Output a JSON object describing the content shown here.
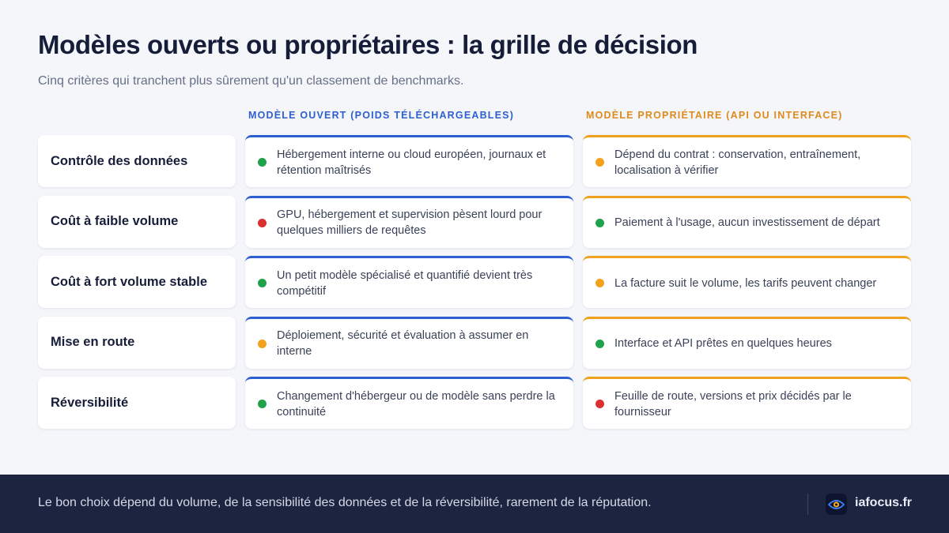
{
  "header": {
    "title": "Modèles ouverts ou propriétaires : la grille de décision",
    "subtitle": "Cinq critères qui tranchent plus sûrement qu'un classement de benchmarks."
  },
  "columns": {
    "open": "MODÈLE OUVERT (POIDS TÉLÉCHARGEABLES)",
    "proprietary": "MODÈLE PROPRIÉTAIRE (API OU INTERFACE)"
  },
  "colors": {
    "open_accent": "#2d5fd0",
    "proprietary_accent": "#f0a21e",
    "green": "#1fa34a",
    "orange": "#f2a31b",
    "red": "#dc3030"
  },
  "rows": [
    {
      "criterion": "Contrôle des données",
      "open": {
        "status": "green",
        "text": "Hébergement interne ou cloud européen, journaux et rétention maîtrisés"
      },
      "proprietary": {
        "status": "orange",
        "text": "Dépend du contrat : conservation, entraînement, localisation à vérifier"
      }
    },
    {
      "criterion": "Coût à faible volume",
      "open": {
        "status": "red",
        "text": "GPU, hébergement et supervision pèsent lourd pour quelques milliers de requêtes"
      },
      "proprietary": {
        "status": "green",
        "text": "Paiement à l'usage, aucun investissement de départ"
      }
    },
    {
      "criterion": "Coût à fort volume stable",
      "open": {
        "status": "green",
        "text": "Un petit modèle spécialisé et quantifié devient très compétitif"
      },
      "proprietary": {
        "status": "orange",
        "text": "La facture suit le volume, les tarifs peuvent changer"
      }
    },
    {
      "criterion": "Mise en route",
      "open": {
        "status": "orange",
        "text": "Déploiement, sécurité et évaluation à assumer en interne"
      },
      "proprietary": {
        "status": "green",
        "text": "Interface et API prêtes en quelques heures"
      }
    },
    {
      "criterion": "Réversibilité",
      "open": {
        "status": "green",
        "text": "Changement d'hébergeur ou de modèle sans perdre la continuité"
      },
      "proprietary": {
        "status": "red",
        "text": "Feuille de route, versions et prix décidés par le fournisseur"
      }
    }
  ],
  "footer": {
    "text": "Le bon choix dépend du volume, de la sensibilité des données et de la réversibilité, rarement de la réputation.",
    "brand": "iafocus.fr",
    "brand_icon": "eye-logo-icon"
  }
}
